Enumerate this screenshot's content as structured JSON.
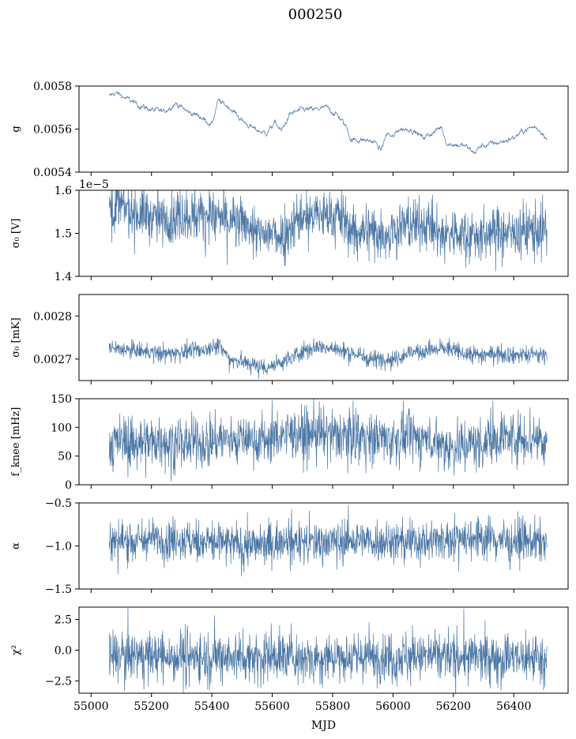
{
  "figure": {
    "title": "000250",
    "series_color": "#4a76a5"
  },
  "chart_data": [
    {
      "type": "line",
      "ylabel": "g",
      "xlim": [
        54960,
        56580
      ],
      "ylim": [
        0.0054,
        0.0058
      ],
      "yticks": [
        "0.0054",
        "0.0056",
        "0.0058"
      ],
      "ytick_values": [
        0.0054,
        0.0056,
        0.0058
      ],
      "offset_text": "",
      "noise": 4e-06,
      "xticks_labels": false,
      "series": [
        {
          "x": [
            55060,
            55080,
            55120,
            55160,
            55200,
            55240,
            55280,
            55320,
            55360,
            55400,
            55420,
            55460,
            55500,
            55540,
            55580,
            55610,
            55630,
            55660,
            55700,
            55740,
            55780,
            55820,
            55850,
            55860,
            55900,
            55940,
            55960,
            55980,
            56000,
            56020,
            56060,
            56100,
            56140,
            56160,
            56180,
            56200,
            56240,
            56270,
            56290,
            56320,
            56360,
            56400,
            56440,
            56470,
            56500,
            56510
          ],
          "values": [
            0.00575,
            0.00577,
            0.00574,
            0.00571,
            0.00569,
            0.00568,
            0.00572,
            0.00568,
            0.00566,
            0.00562,
            0.00573,
            0.0057,
            0.00564,
            0.0056,
            0.00558,
            0.00563,
            0.00559,
            0.00567,
            0.00569,
            0.00569,
            0.0057,
            0.00566,
            0.0056,
            0.00555,
            0.00555,
            0.00554,
            0.0055,
            0.00558,
            0.00556,
            0.0056,
            0.0056,
            0.00556,
            0.00559,
            0.00561,
            0.00553,
            0.00553,
            0.00552,
            0.00549,
            0.00552,
            0.00553,
            0.00554,
            0.00556,
            0.0056,
            0.00561,
            0.00558,
            0.00555
          ]
        }
      ]
    },
    {
      "type": "line",
      "ylabel": "σ₀ [V]",
      "xlim": [
        54960,
        56580
      ],
      "ylim": [
        1.4e-05,
        1.6e-05
      ],
      "yticks": [
        "1.4",
        "1.5",
        "1.6"
      ],
      "ytick_values": [
        1.4e-05,
        1.5e-05,
        1.6e-05
      ],
      "offset_text": "1e−5",
      "noise": 3e-07,
      "xticks_labels": false,
      "series": [
        {
          "x": [
            55060,
            55100,
            55160,
            55200,
            55260,
            55300,
            55360,
            55400,
            55440,
            55480,
            55520,
            55560,
            55600,
            55640,
            55660,
            55700,
            55760,
            55800,
            55820,
            55840,
            55860,
            55900,
            55940,
            55980,
            56000,
            56040,
            56080,
            56120,
            56160,
            56200,
            56240,
            56260,
            56280,
            56320,
            56360,
            56400,
            56440,
            56480,
            56510
          ],
          "values": [
            1.565e-05,
            1.56e-05,
            1.545e-05,
            1.54e-05,
            1.53e-05,
            1.54e-05,
            1.545e-05,
            1.545e-05,
            1.53e-05,
            1.525e-05,
            1.52e-05,
            1.49e-05,
            1.5e-05,
            1.495e-05,
            1.52e-05,
            1.54e-05,
            1.54e-05,
            1.54e-05,
            1.545e-05,
            1.525e-05,
            1.505e-05,
            1.505e-05,
            1.505e-05,
            1.5e-05,
            1.505e-05,
            1.52e-05,
            1.52e-05,
            1.515e-05,
            1.495e-05,
            1.5e-05,
            1.495e-05,
            1.5e-05,
            1.49e-05,
            1.5e-05,
            1.5e-05,
            1.5e-05,
            1.505e-05,
            1.51e-05,
            1.505e-05
          ]
        }
      ]
    },
    {
      "type": "line",
      "ylabel": "σ₀ [mK]",
      "xlim": [
        54960,
        56580
      ],
      "ylim": [
        0.00265,
        0.00285
      ],
      "yticks": [
        "0.0027",
        "0.0028"
      ],
      "ytick_values": [
        0.0027,
        0.0028
      ],
      "offset_text": "",
      "noise": 1e-05,
      "xticks_labels": false,
      "series": [
        {
          "x": [
            55060,
            55120,
            55200,
            55260,
            55320,
            55380,
            55420,
            55460,
            55520,
            55580,
            55620,
            55660,
            55700,
            55760,
            55820,
            55860,
            55900,
            55940,
            56000,
            56060,
            56120,
            56180,
            56220,
            56260,
            56300,
            56340,
            56400,
            56460,
            56510
          ],
          "values": [
            0.002725,
            0.00272,
            0.002715,
            0.002712,
            0.002718,
            0.002722,
            0.002735,
            0.0027,
            0.00269,
            0.00268,
            0.00269,
            0.0027,
            0.00272,
            0.00273,
            0.00272,
            0.002715,
            0.002705,
            0.0027,
            0.0027,
            0.002715,
            0.00272,
            0.002725,
            0.002715,
            0.00271,
            0.00271,
            0.002715,
            0.00271,
            0.00271,
            0.00271
          ]
        }
      ]
    },
    {
      "type": "line",
      "ylabel": "f_knee [mHz]",
      "xlim": [
        54960,
        56580
      ],
      "ylim": [
        0,
        150
      ],
      "yticks": [
        "0",
        "50",
        "100",
        "150"
      ],
      "ytick_values": [
        0,
        50,
        100,
        150
      ],
      "offset_text": "",
      "noise": 22,
      "xticks_labels": false,
      "series": [
        {
          "x": [
            55060,
            55200,
            55380,
            55420,
            55600,
            55640,
            55900,
            55920,
            56100,
            56200,
            56260,
            56300,
            56320,
            56400,
            56510
          ],
          "values": [
            72,
            75,
            72,
            80,
            80,
            90,
            85,
            80,
            82,
            65,
            70,
            72,
            85,
            82,
            80
          ]
        }
      ]
    },
    {
      "type": "line",
      "ylabel": "α",
      "xlim": [
        54960,
        56580
      ],
      "ylim": [
        -1.5,
        -0.5
      ],
      "yticks": [
        "−1.5",
        "−1.0",
        "−0.5"
      ],
      "ytick_values": [
        -1.5,
        -1.0,
        -0.5
      ],
      "offset_text": "",
      "noise": 0.12,
      "xticks_labels": false,
      "series": [
        {
          "x": [
            55060,
            55200,
            55400,
            55500,
            55700,
            55900,
            56100,
            56200,
            56300,
            56400,
            56510
          ],
          "values": [
            -0.95,
            -0.92,
            -0.95,
            -1.0,
            -0.95,
            -0.95,
            -0.95,
            -0.9,
            -0.9,
            -0.95,
            -0.95
          ]
        }
      ]
    },
    {
      "type": "line",
      "ylabel": "χ²",
      "xlim": [
        54960,
        56580
      ],
      "ylim": [
        -3.5,
        3.5
      ],
      "yticks": [
        "−2.5",
        "0.0",
        "2.5"
      ],
      "ytick_values": [
        -2.5,
        0.0,
        2.5
      ],
      "offset_text": "",
      "noise": 1.0,
      "xticks_labels": true,
      "xticks": [
        "55000",
        "55200",
        "55400",
        "55600",
        "55800",
        "56000",
        "56200",
        "56400"
      ],
      "xtick_values": [
        55000,
        55200,
        55400,
        55600,
        55800,
        56000,
        56200,
        56400
      ],
      "xlabel": "MJD",
      "series": [
        {
          "x": [
            55060,
            55300,
            55600,
            55900,
            56100,
            56300,
            56510
          ],
          "values": [
            -0.5,
            -0.5,
            -0.5,
            -0.6,
            -0.5,
            -0.6,
            -0.6
          ]
        }
      ]
    }
  ]
}
